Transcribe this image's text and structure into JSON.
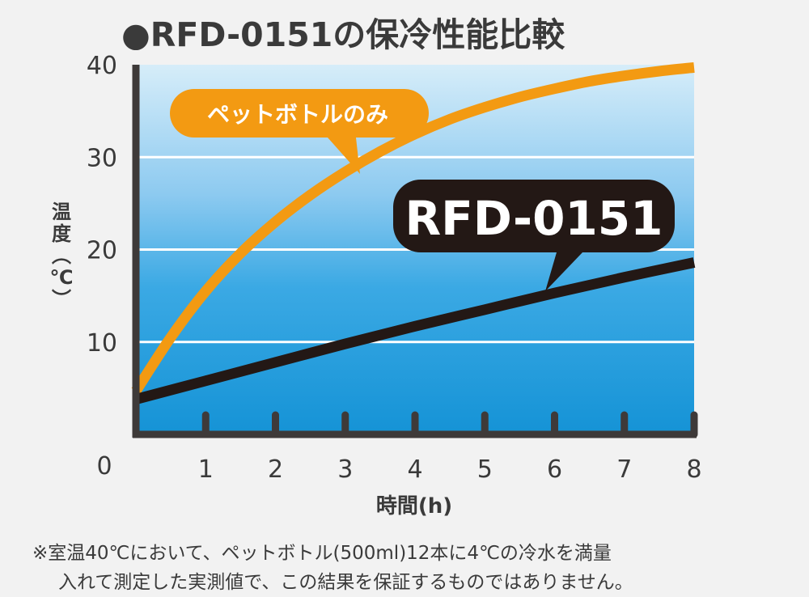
{
  "chart_data": {
    "type": "line",
    "title": "●RFD-0151の保冷性能比較",
    "xlabel": "時間(h)",
    "ylabel": "温度(℃)",
    "x_ticks": [
      1,
      2,
      3,
      4,
      5,
      6,
      7,
      8
    ],
    "y_ticks": [
      10,
      20,
      30,
      40
    ],
    "origin_label": "0",
    "xlim": [
      0,
      8
    ],
    "ylim": [
      0,
      40
    ],
    "background": "blue vertical gradient (light top, saturated bottom)",
    "grid": true,
    "series": [
      {
        "name": "ペットボトルのみ",
        "color": "#f39a12",
        "x": [
          0,
          0.5,
          1,
          1.5,
          2,
          2.5,
          3,
          3.5,
          4,
          4.5,
          5,
          5.5,
          6,
          6.5,
          7,
          7.5,
          8
        ],
        "values": [
          4.7,
          10.5,
          15.5,
          19.6,
          23,
          25.9,
          28.4,
          30.6,
          32.5,
          34.1,
          35.4,
          36.5,
          37.4,
          38.2,
          38.8,
          39.3,
          39.7
        ]
      },
      {
        "name": "RFD-0151",
        "color": "#231815",
        "x": [
          0,
          1,
          2,
          3,
          4,
          5,
          6,
          7,
          8
        ],
        "values": [
          3.8,
          5.8,
          7.8,
          9.8,
          11.7,
          13.5,
          15.3,
          17.0,
          18.6
        ]
      }
    ]
  },
  "colors": {
    "orange": "#f39a12",
    "dark": "#231815",
    "axis": "#3e3a39",
    "bg_top": "#cfe9f8",
    "bg_bottom": "#1a9ad9"
  },
  "footnote": {
    "line1": "※室温40℃において、ペットボトル(500ml)12本に4℃の冷水を満量",
    "line2": "入れて測定した実測値で、この結果を保証するものではありません。"
  }
}
